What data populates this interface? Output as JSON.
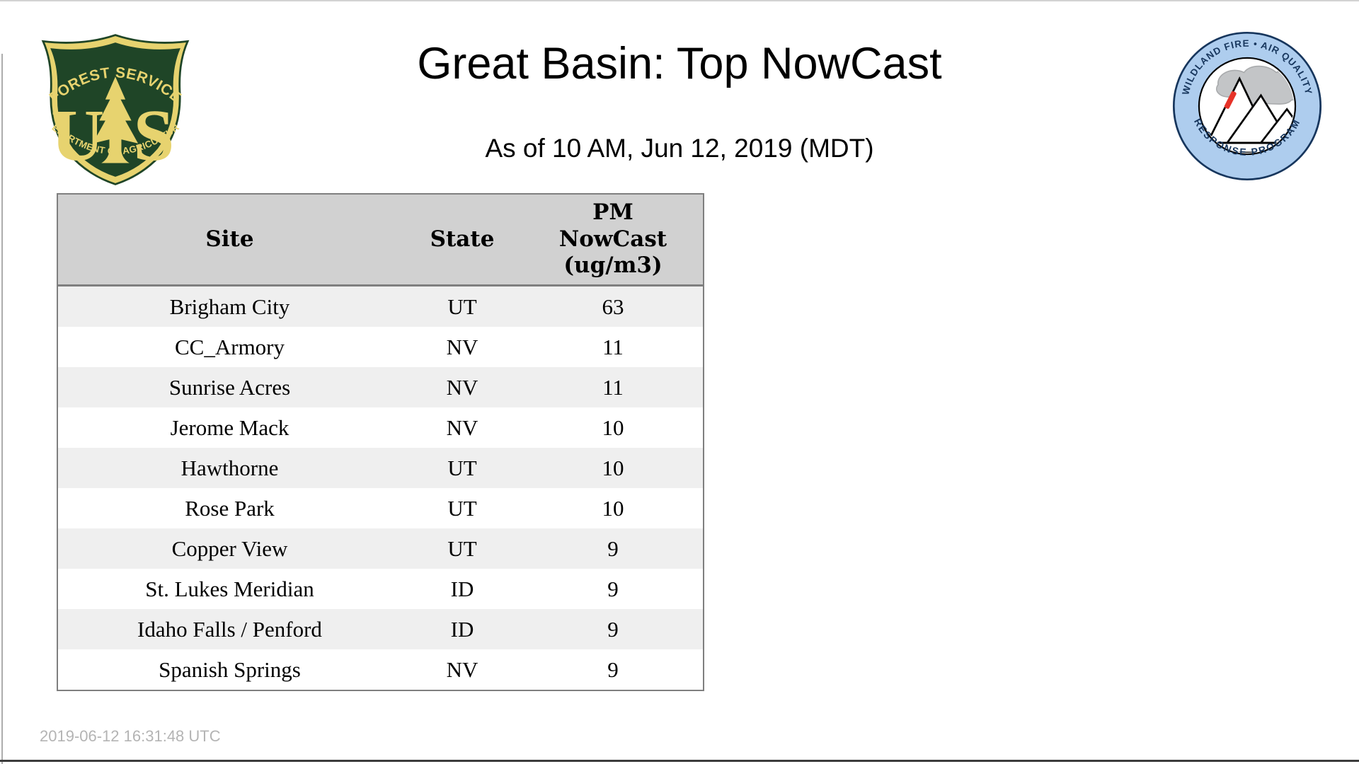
{
  "page": {
    "title": "Great Basin: Top NowCast",
    "subtitle": "As of 10 AM, Jun 12, 2019 (MDT)",
    "footer_timestamp": "2019-06-12 16:31:48 UTC"
  },
  "logos": {
    "forest_service": {
      "name": "US Forest Service shield",
      "arc_top": "FOREST SERVICE",
      "letter_left": "U",
      "letter_right": "S",
      "arc_bottom": "DEPARTMENT OF AGRICULTURE",
      "colors": {
        "green": "#1f4527",
        "gold": "#e7d36f"
      }
    },
    "air_quality": {
      "name": "Wildland Fire Air Quality Response Program badge",
      "arc_top": "WILDLAND FIRE • AIR QUALITY",
      "arc_bottom": "RESPONSE PROGRAM",
      "colors": {
        "ring": "#aecdee",
        "outline": "#17365d",
        "smoke": "#c3c5c7",
        "fire": "#e63228"
      }
    }
  },
  "table": {
    "columns": [
      "Site",
      "State",
      "PM NowCast (ug/m3)"
    ],
    "header": {
      "site": "Site",
      "state": "State",
      "value": "PM\nNowCast\n(ug/m3)"
    },
    "rows": [
      {
        "site": "Brigham City",
        "state": "UT",
        "nowcast": "63"
      },
      {
        "site": "CC_Armory",
        "state": "NV",
        "nowcast": "11"
      },
      {
        "site": "Sunrise Acres",
        "state": "NV",
        "nowcast": "11"
      },
      {
        "site": "Jerome Mack",
        "state": "NV",
        "nowcast": "10"
      },
      {
        "site": "Hawthorne",
        "state": "UT",
        "nowcast": "10"
      },
      {
        "site": "Rose Park",
        "state": "UT",
        "nowcast": "10"
      },
      {
        "site": "Copper View",
        "state": "UT",
        "nowcast": "9"
      },
      {
        "site": "St. Lukes Meridian",
        "state": "ID",
        "nowcast": "9"
      },
      {
        "site": "Idaho Falls / Penford",
        "state": "ID",
        "nowcast": "9"
      },
      {
        "site": "Spanish Springs",
        "state": "NV",
        "nowcast": "9"
      }
    ],
    "colors": {
      "header_bg": "#d1d1d1",
      "row_alt_bg": "#efefef",
      "border": "#7f7f7f"
    }
  },
  "chart_data": {
    "type": "table",
    "title": "Great Basin: Top NowCast",
    "subtitle": "As of 10 AM, Jun 12, 2019 (MDT)",
    "columns": [
      "Site",
      "State",
      "PM NowCast (ug/m3)"
    ],
    "rows": [
      [
        "Brigham City",
        "UT",
        63
      ],
      [
        "CC_Armory",
        "NV",
        11
      ],
      [
        "Sunrise Acres",
        "NV",
        11
      ],
      [
        "Jerome Mack",
        "NV",
        10
      ],
      [
        "Hawthorne",
        "UT",
        10
      ],
      [
        "Rose Park",
        "UT",
        10
      ],
      [
        "Copper View",
        "UT",
        9
      ],
      [
        "St. Lukes Meridian",
        "ID",
        9
      ],
      [
        "Idaho Falls / Penford",
        "ID",
        9
      ],
      [
        "Spanish Springs",
        "NV",
        9
      ]
    ]
  }
}
